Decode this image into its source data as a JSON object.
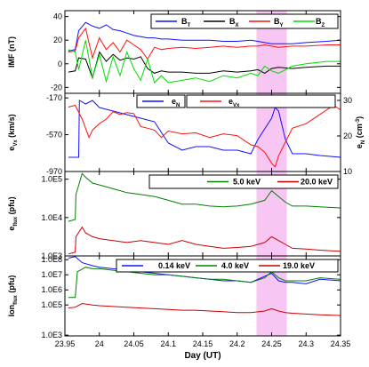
{
  "chart_data": {
    "type": "line",
    "shared_x": {
      "label": "Day (UT)",
      "range": [
        23.95,
        24.35
      ],
      "ticks": [
        "23.95",
        "24",
        "24.05",
        "24.1",
        "24.15",
        "24.2",
        "24.25",
        "24.3",
        "24.35"
      ]
    },
    "highlight_band": {
      "x": [
        24.228,
        24.272
      ],
      "color": "#f7c6f3"
    },
    "panels": [
      {
        "ylabel": "IMF (nT)",
        "ylim": [
          -25,
          45
        ],
        "y_ticks": [
          "40",
          "20",
          "0",
          "-20"
        ],
        "legend": "top-right",
        "series": [
          {
            "name": "B_T",
            "color": "#1010ff",
            "x": [
              23.955,
              23.965,
              23.97,
              23.98,
              23.99,
              24.0,
              24.01,
              24.02,
              24.03,
              24.04,
              24.05,
              24.06,
              24.07,
              24.08,
              24.09,
              24.1,
              24.12,
              24.14,
              24.16,
              24.18,
              24.2,
              24.22,
              24.23,
              24.24,
              24.25,
              24.26,
              24.28,
              24.3,
              24.33,
              24.35
            ],
            "y": [
              11,
              12,
              28,
              35,
              32,
              30,
              33,
              29,
              28,
              26,
              24,
              23,
              22,
              22,
              21,
              21,
              20,
              20,
              20,
              19,
              19,
              20,
              19,
              18,
              17,
              17,
              17,
              18,
              19,
              20
            ]
          },
          {
            "name": "B_X",
            "color": "#000000",
            "x": [
              23.955,
              23.965,
              23.97,
              23.98,
              23.99,
              24.0,
              24.01,
              24.02,
              24.03,
              24.04,
              24.05,
              24.06,
              24.07,
              24.08,
              24.09,
              24.1,
              24.12,
              24.14,
              24.16,
              24.18,
              24.2,
              24.22,
              24.23,
              24.24,
              24.25,
              24.26,
              24.28,
              24.3,
              24.33,
              24.35
            ],
            "y": [
              -7,
              -6,
              5,
              4,
              -12,
              10,
              2,
              8,
              3,
              5,
              4,
              6,
              -4,
              -8,
              -6,
              -7,
              -7,
              -8,
              -8,
              -6,
              -7,
              -6,
              -5,
              -8,
              -4,
              -3,
              -4,
              -3,
              -2,
              -2
            ]
          },
          {
            "name": "B_Y",
            "color": "#ff1010",
            "x": [
              23.955,
              23.965,
              23.97,
              23.98,
              23.99,
              24.0,
              24.01,
              24.02,
              24.03,
              24.04,
              24.05,
              24.06,
              24.07,
              24.08,
              24.09,
              24.1,
              24.12,
              24.14,
              24.16,
              24.18,
              24.2,
              24.22,
              24.23,
              24.24,
              24.25,
              24.26,
              24.28,
              24.3,
              24.33,
              24.35
            ],
            "y": [
              10,
              11,
              22,
              30,
              5,
              22,
              12,
              18,
              10,
              20,
              16,
              12,
              4,
              14,
              12,
              13,
              14,
              13,
              14,
              15,
              14,
              15,
              15,
              16,
              15,
              14,
              15,
              15,
              16,
              16
            ]
          },
          {
            "name": "B_Z",
            "color": "#00dd00",
            "x": [
              23.955,
              23.965,
              23.97,
              23.98,
              23.99,
              24.0,
              24.01,
              24.02,
              24.03,
              24.04,
              24.05,
              24.06,
              24.07,
              24.08,
              24.09,
              24.1,
              24.12,
              24.14,
              24.16,
              24.18,
              24.2,
              24.22,
              24.23,
              24.24,
              24.25,
              24.26,
              24.28,
              24.3,
              24.33,
              24.35
            ],
            "y": [
              12,
              10,
              -5,
              20,
              -12,
              8,
              -15,
              6,
              -10,
              10,
              -4,
              -14,
              4,
              -16,
              -10,
              -16,
              -14,
              -12,
              -15,
              -10,
              -12,
              -8,
              -10,
              -2,
              -6,
              -8,
              -2,
              0,
              2,
              2
            ]
          }
        ]
      },
      {
        "ylabel": "e_Vx (km/s)",
        "ylim": [
          -970,
          -120
        ],
        "y_ticks": [
          "-170",
          "-570",
          "-970"
        ],
        "right_ylabel": "e_N (cm^-3)",
        "right_ylim": [
          10,
          32
        ],
        "right_ticks": [
          "30",
          "20",
          "10"
        ],
        "legend": "top-right",
        "series": [
          {
            "name": "e_N",
            "color": "#1010ff",
            "axis": "right",
            "x": [
              23.955,
              23.97,
              23.971,
              23.98,
              23.99,
              24.0,
              24.02,
              24.04,
              24.06,
              24.08,
              24.1,
              24.12,
              24.14,
              24.16,
              24.18,
              24.2,
              24.22,
              24.23,
              24.24,
              24.25,
              24.255,
              24.26,
              24.27,
              24.28,
              24.3,
              24.32,
              24.35
            ],
            "y": [
              14,
              14,
              30,
              29,
              30,
              28,
              27,
              26,
              25,
              24,
              18,
              16,
              17,
              17,
              16,
              16,
              15,
              19,
              22,
              25,
              28,
              27,
              19,
              15,
              15,
              14.5,
              14
            ]
          },
          {
            "name": "e_Vx",
            "color": "#ff1010",
            "axis": "left",
            "x": [
              23.955,
              23.965,
              23.975,
              23.985,
              23.99,
              24.0,
              24.01,
              24.02,
              24.03,
              24.04,
              24.05,
              24.06,
              24.07,
              24.08,
              24.09,
              24.1,
              24.12,
              24.14,
              24.16,
              24.18,
              24.2,
              24.22,
              24.23,
              24.24,
              24.25,
              24.255,
              24.26,
              24.27,
              24.28,
              24.3,
              24.32,
              24.34,
              24.35
            ],
            "y": [
              -270,
              -250,
              -400,
              -600,
              -520,
              -450,
              -400,
              -320,
              -350,
              -330,
              -340,
              -480,
              -500,
              -520,
              -600,
              -530,
              -560,
              -550,
              -600,
              -560,
              -580,
              -680,
              -700,
              -760,
              -880,
              -920,
              -800,
              -650,
              -500,
              -450,
              -350,
              -250,
              -300
            ]
          }
        ]
      },
      {
        "ylabel": "e_flux (pfu)",
        "ylim": [
          3.0,
          5.2
        ],
        "y_ticks": [
          "1.0E5",
          "1.0E4",
          "1.0E3"
        ],
        "legend": "top-right",
        "series": [
          {
            "name": "5.0 keV",
            "color": "#008000",
            "x": [
              23.955,
              23.965,
              23.966,
              23.975,
              23.98,
              23.99,
              24.0,
              24.02,
              24.04,
              24.06,
              24.08,
              24.1,
              24.12,
              24.14,
              24.16,
              24.18,
              24.2,
              24.22,
              24.24,
              24.25,
              24.26,
              24.27,
              24.28,
              24.3,
              24.32,
              24.35
            ],
            "y": [
              3.9,
              3.95,
              4.6,
              5.15,
              5.05,
              4.9,
              4.85,
              4.75,
              4.65,
              4.6,
              4.55,
              4.45,
              4.35,
              4.35,
              4.3,
              4.28,
              4.3,
              4.35,
              4.45,
              4.7,
              4.55,
              4.4,
              4.3,
              4.3,
              4.28,
              4.25
            ]
          },
          {
            "name": "20.0 keV",
            "color": "#cc0000",
            "x": [
              23.955,
              23.965,
              23.966,
              23.975,
              23.98,
              23.99,
              24.0,
              24.02,
              24.04,
              24.06,
              24.08,
              24.1,
              24.12,
              24.14,
              24.16,
              24.18,
              24.2,
              24.22,
              24.24,
              24.25,
              24.26,
              24.27,
              24.28,
              24.3,
              24.32,
              24.35
            ],
            "y": [
              3.05,
              3.1,
              3.5,
              3.75,
              3.6,
              3.5,
              3.45,
              3.4,
              3.35,
              3.4,
              3.35,
              3.3,
              3.4,
              3.3,
              3.25,
              3.2,
              3.22,
              3.25,
              3.35,
              3.5,
              3.4,
              3.3,
              3.2,
              3.18,
              3.15,
              3.12
            ]
          }
        ]
      },
      {
        "ylabel": "Ion_flux (pfu)",
        "ylim": [
          2.95,
          8.25
        ],
        "y_ticks": [
          "1.0E8",
          "1.0E7",
          "1.0E6",
          "1.0E5",
          "1.0E3"
        ],
        "legend": "top-right",
        "series": [
          {
            "name": "0.14 keV",
            "color": "#1010ff",
            "x": [
              23.955,
              23.965,
              23.975,
              23.99,
              24.0,
              24.02,
              24.04,
              24.06,
              24.08,
              24.1,
              24.12,
              24.14,
              24.16,
              24.18,
              24.2,
              24.22,
              24.24,
              24.25,
              24.26,
              24.27,
              24.28,
              24.3,
              24.32,
              24.35
            ],
            "y": [
              8.1,
              8.2,
              7.8,
              7.6,
              7.5,
              7.4,
              7.3,
              7.2,
              7.1,
              7.0,
              6.9,
              6.8,
              6.7,
              6.6,
              6.6,
              6.5,
              6.9,
              7.1,
              6.6,
              6.5,
              6.5,
              6.4,
              6.7,
              6.6
            ]
          },
          {
            "name": "4.0 keV",
            "color": "#008000",
            "x": [
              23.955,
              23.965,
              23.968,
              23.98,
              23.99,
              24.0,
              24.02,
              24.04,
              24.06,
              24.08,
              24.1,
              24.12,
              24.14,
              24.16,
              24.18,
              24.2,
              24.22,
              24.24,
              24.25,
              24.26,
              24.27,
              24.28,
              24.3,
              24.32,
              24.35
            ],
            "y": [
              5.5,
              5.5,
              7.2,
              7.5,
              7.4,
              7.4,
              7.3,
              7.2,
              7.1,
              7.0,
              7.0,
              6.9,
              6.8,
              6.7,
              6.7,
              6.6,
              6.5,
              6.8,
              7.2,
              6.8,
              6.6,
              6.6,
              6.6,
              6.8,
              6.7
            ]
          },
          {
            "name": "19.0 keV",
            "color": "#cc0000",
            "x": [
              23.955,
              23.965,
              23.975,
              23.99,
              24.0,
              24.02,
              24.04,
              24.06,
              24.08,
              24.1,
              24.12,
              24.14,
              24.16,
              24.18,
              24.2,
              24.22,
              24.24,
              24.25,
              24.26,
              24.27,
              24.28,
              24.3,
              24.32,
              24.35
            ],
            "y": [
              4.8,
              4.85,
              5.1,
              5.0,
              4.95,
              4.9,
              4.85,
              4.8,
              4.75,
              4.7,
              4.65,
              4.65,
              4.6,
              4.55,
              4.5,
              4.5,
              4.6,
              4.75,
              4.6,
              4.5,
              4.45,
              4.4,
              4.35,
              4.3
            ]
          }
        ]
      }
    ]
  }
}
